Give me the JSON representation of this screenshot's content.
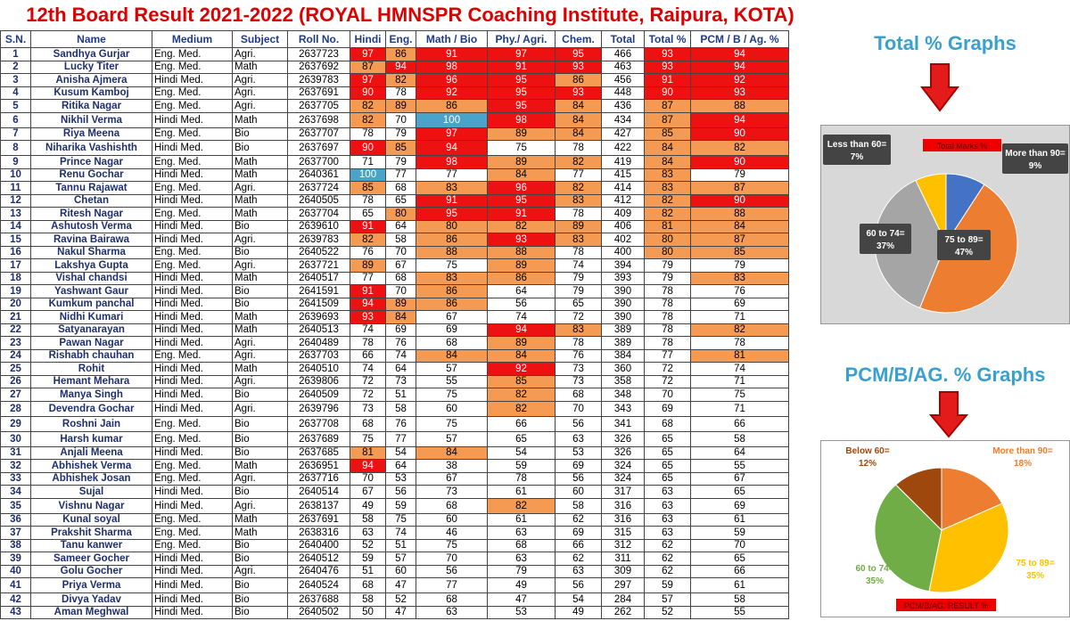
{
  "title": "12th Board Result 2021-2022 (ROYAL HMNSPR Coaching Institute, Raipura, KOTA)",
  "headers": [
    "S.N.",
    "Name",
    "Medium",
    "Subject",
    "Roll No.",
    "Hindi",
    "Eng.",
    "Math / Bio",
    "Phy./ Agri.",
    "Chem.",
    "Total",
    "Total %",
    "PCM / B / Ag. %"
  ],
  "rows": [
    [
      "1",
      "Sandhya Gurjar",
      "Eng. Med.",
      "Agri.",
      "2637723",
      "97",
      "86",
      "91",
      "97",
      "95",
      "466",
      "93",
      "94"
    ],
    [
      "2",
      "Lucky Titer",
      "Eng. Med.",
      "Math",
      "2637692",
      "87",
      "94",
      "98",
      "91",
      "93",
      "463",
      "93",
      "94"
    ],
    [
      "3",
      "Anisha Ajmera",
      "Hindi Med.",
      "Agri.",
      "2639783",
      "97",
      "82",
      "96",
      "95",
      "86",
      "456",
      "91",
      "92"
    ],
    [
      "4",
      "Kusum Kamboj",
      "Eng. Med.",
      "Agri.",
      "2637691",
      "90",
      "78",
      "92",
      "95",
      "93",
      "448",
      "90",
      "93"
    ],
    [
      "5",
      "Ritika Nagar",
      "Eng. Med.",
      "Agri.",
      "2637705",
      "82",
      "89",
      "86",
      "95",
      "84",
      "436",
      "87",
      "88"
    ],
    [
      "6",
      "Nikhil Verma",
      "Hindi Med.",
      "Math",
      "2637698",
      "82",
      "70",
      "100",
      "98",
      "84",
      "434",
      "87",
      "94"
    ],
    [
      "7",
      "Riya Meena",
      "Eng. Med.",
      "Bio",
      "2637707",
      "78",
      "79",
      "97",
      "89",
      "84",
      "427",
      "85",
      "90"
    ],
    [
      "8",
      "Niharika Vashishth",
      "Hindi Med.",
      "Bio",
      "2637697",
      "90",
      "85",
      "94",
      "75",
      "78",
      "422",
      "84",
      "82"
    ],
    [
      "9",
      "Prince Nagar",
      "Eng. Med.",
      "Math",
      "2637700",
      "71",
      "79",
      "98",
      "89",
      "82",
      "419",
      "84",
      "90"
    ],
    [
      "10",
      "Renu Gochar",
      "Hindi Med.",
      "Math",
      "2640361",
      "100",
      "77",
      "77",
      "84",
      "77",
      "415",
      "83",
      "79"
    ],
    [
      "11",
      "Tannu Rajawat",
      "Eng. Med.",
      "Agri.",
      "2637724",
      "85",
      "68",
      "83",
      "96",
      "82",
      "414",
      "83",
      "87"
    ],
    [
      "12",
      "Chetan",
      "Hindi Med.",
      "Math",
      "2640505",
      "78",
      "65",
      "91",
      "95",
      "83",
      "412",
      "82",
      "90"
    ],
    [
      "13",
      "Ritesh Nagar",
      "Eng. Med.",
      "Math",
      "2637704",
      "65",
      "80",
      "95",
      "91",
      "78",
      "409",
      "82",
      "88"
    ],
    [
      "14",
      "Ashutosh Verma",
      "Hindi Med.",
      "Bio",
      "2639610",
      "91",
      "64",
      "80",
      "82",
      "89",
      "406",
      "81",
      "84"
    ],
    [
      "15",
      "Ravina Bairawa",
      "Hindi Med.",
      "Agri.",
      "2639783",
      "82",
      "58",
      "86",
      "93",
      "83",
      "402",
      "80",
      "87"
    ],
    [
      "16",
      "Nakul Sharma",
      "Eng. Med.",
      "Bio",
      "2640522",
      "76",
      "70",
      "88",
      "88",
      "78",
      "400",
      "80",
      "85"
    ],
    [
      "17",
      "Lakshya Gupta",
      "Eng. Med.",
      "Agri.",
      "2637721",
      "89",
      "67",
      "75",
      "89",
      "74",
      "394",
      "79",
      "79"
    ],
    [
      "18",
      "Vishal chandsi",
      "Hindi Med.",
      "Math",
      "2640517",
      "77",
      "68",
      "83",
      "86",
      "79",
      "393",
      "79",
      "83"
    ],
    [
      "19",
      "Yashwant Gaur",
      "Hindi Med.",
      "Bio",
      "2641591",
      "91",
      "70",
      "86",
      "64",
      "79",
      "390",
      "78",
      "76"
    ],
    [
      "20",
      "Kumkum panchal",
      "Hindi Med.",
      "Bio",
      "2641509",
      "94",
      "89",
      "86",
      "56",
      "65",
      "390",
      "78",
      "69"
    ],
    [
      "21",
      "Nidhi Kumari",
      "Hindi Med.",
      "Math",
      "2639693",
      "93",
      "84",
      "67",
      "74",
      "72",
      "390",
      "78",
      "71"
    ],
    [
      "22",
      "Satyanarayan",
      "Hindi Med.",
      "Math",
      "2640513",
      "74",
      "69",
      "69",
      "94",
      "83",
      "389",
      "78",
      "82"
    ],
    [
      "23",
      "Pawan Nagar",
      "Hindi Med.",
      "Agri.",
      "2640489",
      "78",
      "76",
      "68",
      "89",
      "78",
      "389",
      "78",
      "78"
    ],
    [
      "24",
      "Rishabh chauhan",
      "Eng. Med.",
      "Agri.",
      "2637703",
      "66",
      "74",
      "84",
      "84",
      "76",
      "384",
      "77",
      "81"
    ],
    [
      "25",
      "Rohit",
      "Hindi Med.",
      "Math",
      "2640510",
      "74",
      "64",
      "57",
      "92",
      "73",
      "360",
      "72",
      "74"
    ],
    [
      "26",
      "Hemant Mehara",
      "Hindi Med.",
      "Agri.",
      "2639806",
      "72",
      "73",
      "55",
      "85",
      "73",
      "358",
      "72",
      "71"
    ],
    [
      "27",
      "Manya Singh",
      "Hindi Med.",
      "Bio",
      "2640509",
      "72",
      "51",
      "75",
      "82",
      "68",
      "348",
      "70",
      "75"
    ],
    [
      "28",
      "Devendra Gochar",
      "Hindi Med.",
      "Agri.",
      "2639796",
      "73",
      "58",
      "60",
      "82",
      "70",
      "343",
      "69",
      "71"
    ],
    [
      "29",
      "Roshni Jain",
      "Eng. Med.",
      "Bio",
      "2637708",
      "68",
      "76",
      "75",
      "66",
      "56",
      "341",
      "68",
      "66"
    ],
    [
      "30",
      "Harsh kumar",
      "Eng. Med.",
      "Bio",
      "2637689",
      "75",
      "77",
      "57",
      "65",
      "63",
      "326",
      "65",
      "58"
    ],
    [
      "31",
      "Anjali Meena",
      "Hindi Med.",
      "Bio",
      "2637685",
      "81",
      "54",
      "84",
      "54",
      "53",
      "326",
      "65",
      "64"
    ],
    [
      "32",
      "Abhishek Verma",
      "Eng. Med.",
      "Math",
      "2636951",
      "94",
      "64",
      "38",
      "59",
      "69",
      "324",
      "65",
      "55"
    ],
    [
      "33",
      "Abhishek Josan",
      "Eng. Med.",
      "Agri.",
      "2637716",
      "70",
      "53",
      "67",
      "78",
      "56",
      "324",
      "65",
      "67"
    ],
    [
      "34",
      "Sujal",
      "Hindi Med.",
      "Bio",
      "2640514",
      "67",
      "56",
      "73",
      "61",
      "60",
      "317",
      "63",
      "65"
    ],
    [
      "35",
      "Vishnu Nagar",
      "Hindi Med.",
      "Agri.",
      "2638137",
      "49",
      "59",
      "68",
      "82",
      "58",
      "316",
      "63",
      "69"
    ],
    [
      "36",
      "Kunal soyal",
      "Eng. Med.",
      "Math",
      "2637691",
      "58",
      "75",
      "60",
      "61",
      "62",
      "316",
      "63",
      "61"
    ],
    [
      "37",
      "Prakshit Sharma",
      "Eng. Med.",
      "Math",
      "2638316",
      "63",
      "74",
      "46",
      "63",
      "69",
      "315",
      "63",
      "59"
    ],
    [
      "38",
      "Tanu kanwer",
      "Eng. Med.",
      "Bio",
      "2640400",
      "52",
      "51",
      "75",
      "68",
      "66",
      "312",
      "62",
      "70"
    ],
    [
      "39",
      "Sameer Gocher",
      "Hindi Med.",
      "Bio",
      "2640512",
      "59",
      "57",
      "70",
      "63",
      "62",
      "311",
      "62",
      "65"
    ],
    [
      "40",
      "Golu Gocher",
      "Hindi Med.",
      "Agri.",
      "2640476",
      "51",
      "60",
      "56",
      "79",
      "63",
      "309",
      "62",
      "66"
    ],
    [
      "41",
      "Priya Verma",
      "Hindi Med.",
      "Bio",
      "2640524",
      "68",
      "47",
      "77",
      "49",
      "56",
      "297",
      "59",
      "61"
    ],
    [
      "42",
      "Divya Yadav",
      "Hindi Med.",
      "Bio",
      "2637688",
      "58",
      "52",
      "68",
      "47",
      "54",
      "284",
      "57",
      "58"
    ],
    [
      "43",
      "Aman Meghwal",
      "Hindi Med.",
      "Bio",
      "2640502",
      "50",
      "47",
      "63",
      "53",
      "49",
      "262",
      "52",
      "55"
    ]
  ],
  "colors": {
    "red": "#ee1111",
    "orange": "#f49a52",
    "blue": "#4aa3c8"
  },
  "right_panel": {
    "total_graph_title": "Total % Graphs",
    "pcm_graph_title": "PCM/B/AG. % Graphs"
  },
  "chart_data": [
    {
      "type": "pie",
      "title": "Total Marks %",
      "slices": [
        {
          "label": "More than 90=",
          "value": 9,
          "value_label": "9%",
          "color": "#4472c4"
        },
        {
          "label": "75 to 89=",
          "value": 47,
          "value_label": "47%",
          "color": "#ed7d31"
        },
        {
          "label": "60 to 74=",
          "value": 37,
          "value_label": "37%",
          "color": "#a5a5a5"
        },
        {
          "label": "Less than 60=",
          "value": 7,
          "value_label": "7%",
          "color": "#ffc000"
        }
      ]
    },
    {
      "type": "pie",
      "title": "PCM/B/AG. RESULT %",
      "slices": [
        {
          "label": "More than 90=",
          "value": 18,
          "value_label": "18%",
          "color": "#ed7d31"
        },
        {
          "label": "75 to 89=",
          "value": 35,
          "value_label": "35%",
          "color": "#ffc000"
        },
        {
          "label": "60 to 74=",
          "value": 35,
          "value_label": "35%",
          "color": "#70ad47"
        },
        {
          "label": "Below 60=",
          "value": 12,
          "value_label": "12%",
          "color": "#9e480e"
        }
      ]
    }
  ]
}
